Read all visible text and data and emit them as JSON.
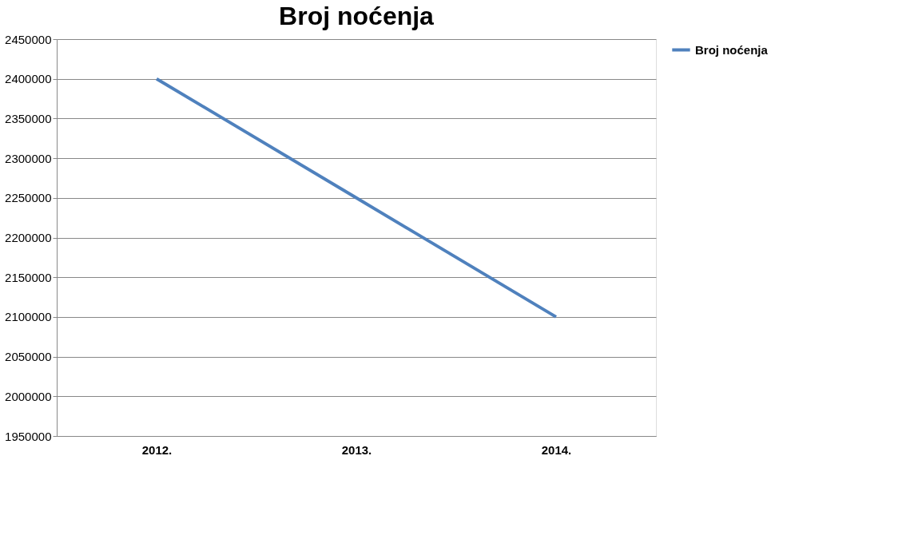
{
  "chart_data": {
    "type": "line",
    "title": "Broj noćenja",
    "categories": [
      "2012.",
      "2013.",
      "2014."
    ],
    "series": [
      {
        "name": "Broj noćenja",
        "color": "#4f81bd",
        "values": [
          2400000,
          2250000,
          2100000
        ]
      }
    ],
    "ylim": [
      1950000,
      2450000
    ],
    "yticks": [
      1950000,
      2000000,
      2050000,
      2100000,
      2150000,
      2200000,
      2250000,
      2300000,
      2350000,
      2400000,
      2450000
    ],
    "grid": "y",
    "legend": "right"
  }
}
